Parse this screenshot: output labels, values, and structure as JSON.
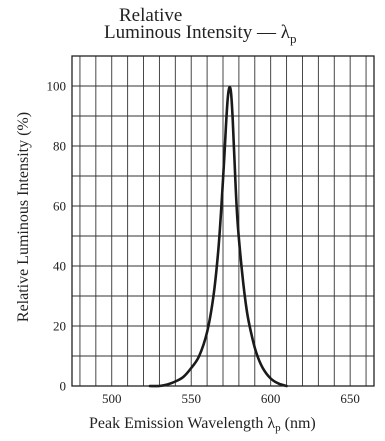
{
  "chart_data": {
    "type": "line",
    "title_line_1": "Relative",
    "title_line_2_prefix": "Luminous Intensity — λ",
    "title_line_2_subscript": "p",
    "xlabel_prefix": "Peak Emission Wavelength  λ",
    "xlabel_subscript": "p",
    "xlabel_suffix": " (nm)",
    "ylabel": "Relative Luminous Intensity  (%)",
    "xlim": [
      475,
      665
    ],
    "ylim": [
      0,
      110
    ],
    "x_ticks": [
      500,
      550,
      600,
      650
    ],
    "x_tick_labels": [
      "500",
      "550",
      "600",
      "650"
    ],
    "y_ticks": [
      0,
      20,
      40,
      60,
      80,
      100
    ],
    "y_tick_labels": [
      "0",
      "20",
      "40",
      "60",
      "80",
      "100"
    ],
    "grid": true,
    "series": [
      {
        "x": [
          524,
          530,
          535,
          540,
          545,
          550,
          555,
          560,
          564,
          567,
          569,
          571,
          572,
          573,
          574,
          575,
          576,
          577,
          579,
          582,
          585,
          588,
          591,
          595,
          600,
          605,
          610
        ],
        "y": [
          0,
          0,
          0.5,
          1.5,
          3,
          6,
          10,
          18,
          30,
          45,
          60,
          78,
          88,
          96,
          99.5,
          98,
          90,
          78,
          56,
          38,
          25,
          17,
          11,
          6,
          2.5,
          0.8,
          0
        ]
      }
    ]
  }
}
